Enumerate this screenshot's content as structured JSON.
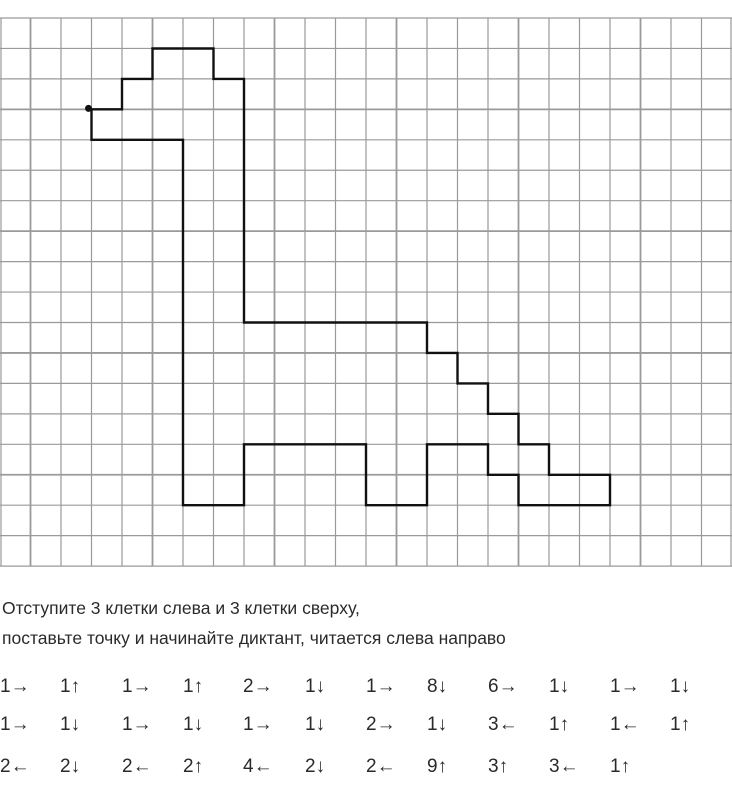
{
  "grid": {
    "columns": 24,
    "rows": 18,
    "start_point": {
      "col": 3,
      "row": 3
    },
    "line_color": "#9a9a9a",
    "path_color": "#111111"
  },
  "instructions": {
    "line1": "Отступите  3 клетки слева и 3 клетки сверху,",
    "line2": "поставьте точку и начинайте диктант, читается слева направо"
  },
  "dictation": [
    [
      "1→",
      "1↑",
      "1→",
      "1↑",
      "2→",
      "1↓",
      "1→",
      "8↓",
      "6→",
      "1↓",
      "1→",
      "1↓"
    ],
    [
      "1→",
      "1↓",
      "1→",
      "1↓",
      "1→",
      "1↓",
      "2→",
      "1↓",
      "3←",
      "1↑",
      "1←",
      "1↑"
    ],
    [
      "2←",
      "2↓",
      "2←",
      "2↑",
      "4←",
      "2↓",
      "2←",
      "9↑",
      "3↑",
      "3←",
      "1↑"
    ]
  ]
}
